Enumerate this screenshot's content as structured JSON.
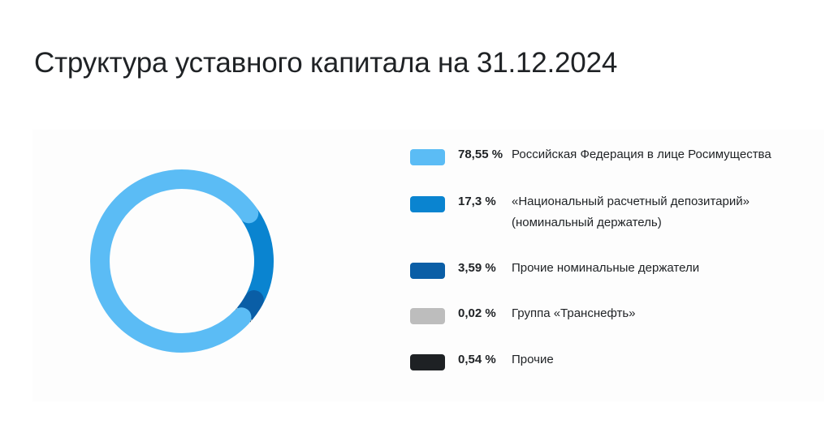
{
  "title": "Структура уставного капитала на 31.12.2024",
  "chart_data": {
    "type": "pie",
    "title": "Структура уставного капитала на 31.12.2024",
    "series": [
      {
        "name": "Российская Федерация в лице Росимущества",
        "pct_label": "78,55 %",
        "value": 78.55,
        "color": "#5bbcf5"
      },
      {
        "name": "«Национальный расчетный депозитарий» (номинальный держатель)",
        "pct_label": "17,3 %",
        "value": 17.3,
        "color": "#0a84d0"
      },
      {
        "name": "Прочие номинальные держатели",
        "pct_label": "3,59 %",
        "value": 3.59,
        "color": "#0a5ea6"
      },
      {
        "name": "Группа «Транснефть»",
        "pct_label": "0,02 %",
        "value": 0.02,
        "color": "#bdbdbd"
      },
      {
        "name": "Прочие",
        "pct_label": "0,54 %",
        "value": 0.54,
        "color": "#1e2124"
      }
    ],
    "legend_position": "right",
    "style": "donut"
  }
}
